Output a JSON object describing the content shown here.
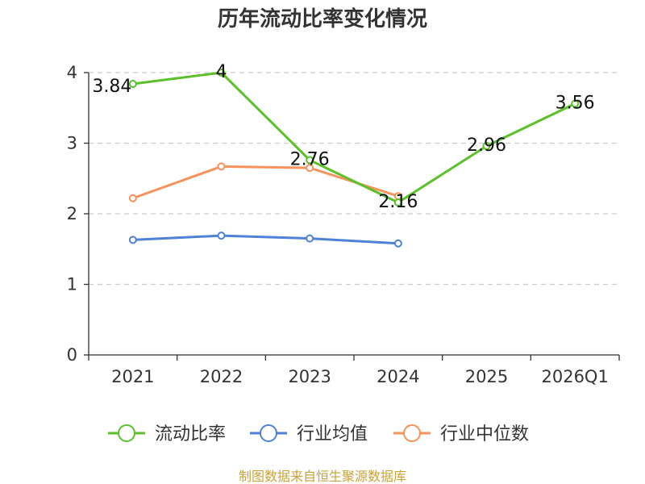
{
  "chart_data": {
    "type": "line",
    "title": "历年流动比率变化情况",
    "categories": [
      "2021",
      "2022",
      "2023",
      "2024",
      "2025",
      "2026Q1"
    ],
    "y_ticks": [
      "0",
      "1",
      "2",
      "3",
      "4"
    ],
    "ylim": [
      0,
      4
    ],
    "grid": true,
    "legend_position": "bottom",
    "series": [
      {
        "name": "流动比率",
        "color": "#5cc02a",
        "values": [
          3.84,
          4,
          2.76,
          2.16,
          2.96,
          3.56
        ],
        "labels": [
          "3.84",
          "4",
          "2.76",
          "2.16",
          "2.96",
          "3.56"
        ]
      },
      {
        "name": "行业均值",
        "color": "#4f80d8",
        "values": [
          1.63,
          1.69,
          1.65,
          1.58,
          null,
          null
        ]
      },
      {
        "name": "行业中位数",
        "color": "#f7925a",
        "values": [
          2.22,
          2.67,
          2.65,
          2.25,
          null,
          null
        ]
      }
    ]
  },
  "source_text": "制图数据来自恒生聚源数据库",
  "source_color": "#c8a33b"
}
